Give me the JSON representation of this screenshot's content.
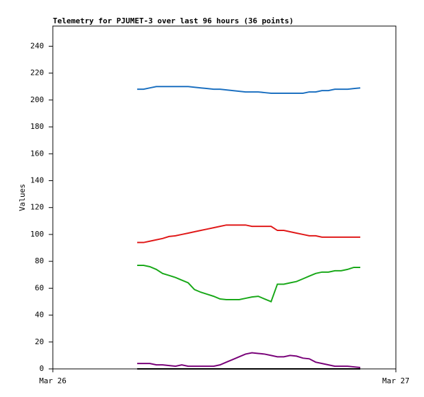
{
  "chart_data": {
    "type": "line",
    "title": "Telemetry for PJUMET-3 over last 96 hours (36 points)",
    "y_label": "Values",
    "x": [
      5.9,
      6.35,
      6.79,
      7.24,
      7.68,
      8.13,
      8.58,
      9.02,
      9.47,
      9.91,
      10.36,
      10.81,
      11.25,
      11.7,
      12.14,
      12.59,
      13.04,
      13.48,
      13.93,
      14.37,
      14.82,
      15.27,
      15.71,
      16.16,
      16.6,
      17.05,
      17.5,
      17.94,
      18.39,
      18.83,
      19.28,
      19.73,
      20.17,
      20.62,
      21.06,
      21.51
    ],
    "xlim": [
      0,
      24
    ],
    "xticks": [
      {
        "value": 0,
        "label": "Mar 26"
      },
      {
        "value": 24,
        "label": "Mar 27"
      }
    ],
    "ylim": [
      0,
      255
    ],
    "yticks": [
      0,
      20,
      40,
      60,
      80,
      100,
      120,
      140,
      160,
      180,
      200,
      220,
      240
    ],
    "grid": false,
    "series": [
      {
        "color": "#1a6fc0",
        "values": [
          208,
          208,
          209,
          210,
          210,
          210,
          210,
          210,
          210,
          209.5,
          209,
          208.5,
          208,
          208,
          207.5,
          207,
          206.5,
          206,
          206,
          206,
          205.5,
          205,
          205,
          205,
          205,
          205,
          205,
          206,
          206,
          207,
          207,
          208,
          208,
          208,
          208.5,
          209
        ]
      },
      {
        "color": "#e01818",
        "values": [
          94,
          94,
          95,
          96,
          97,
          98.5,
          99,
          100,
          101,
          102,
          103,
          104,
          105,
          106,
          107,
          107,
          107,
          107,
          106,
          106,
          106,
          106,
          103,
          103,
          102,
          101,
          100,
          99,
          99,
          98,
          98,
          98,
          98,
          98,
          98,
          98
        ]
      },
      {
        "color": "#18a818",
        "values": [
          77,
          77,
          76,
          74,
          71,
          69.5,
          68,
          66,
          64,
          59,
          57,
          55.5,
          54,
          52,
          51.5,
          51.5,
          51.5,
          52.5,
          53.5,
          54,
          52,
          50,
          63,
          63,
          64,
          65,
          67,
          69,
          71,
          72,
          72,
          73,
          73,
          74,
          75.5,
          75.5
        ]
      },
      {
        "color": "#780078",
        "values": [
          4,
          4,
          4,
          3,
          3,
          2.5,
          2,
          3,
          2,
          2,
          2,
          2,
          2,
          3,
          5,
          7,
          9,
          11,
          12,
          11.5,
          11,
          10,
          9,
          9,
          10,
          9.5,
          8,
          7.5,
          5,
          4,
          3,
          2,
          2,
          2,
          1.5,
          1
        ]
      },
      {
        "color": "#000000",
        "values": [
          0,
          0,
          0,
          0,
          0,
          0,
          0,
          0,
          0,
          0,
          0,
          0,
          0,
          0,
          0,
          0,
          0,
          0,
          0,
          0,
          0,
          0,
          0,
          0,
          0,
          0,
          0,
          0,
          0,
          0,
          0,
          0,
          0,
          0,
          0,
          0
        ]
      }
    ]
  }
}
